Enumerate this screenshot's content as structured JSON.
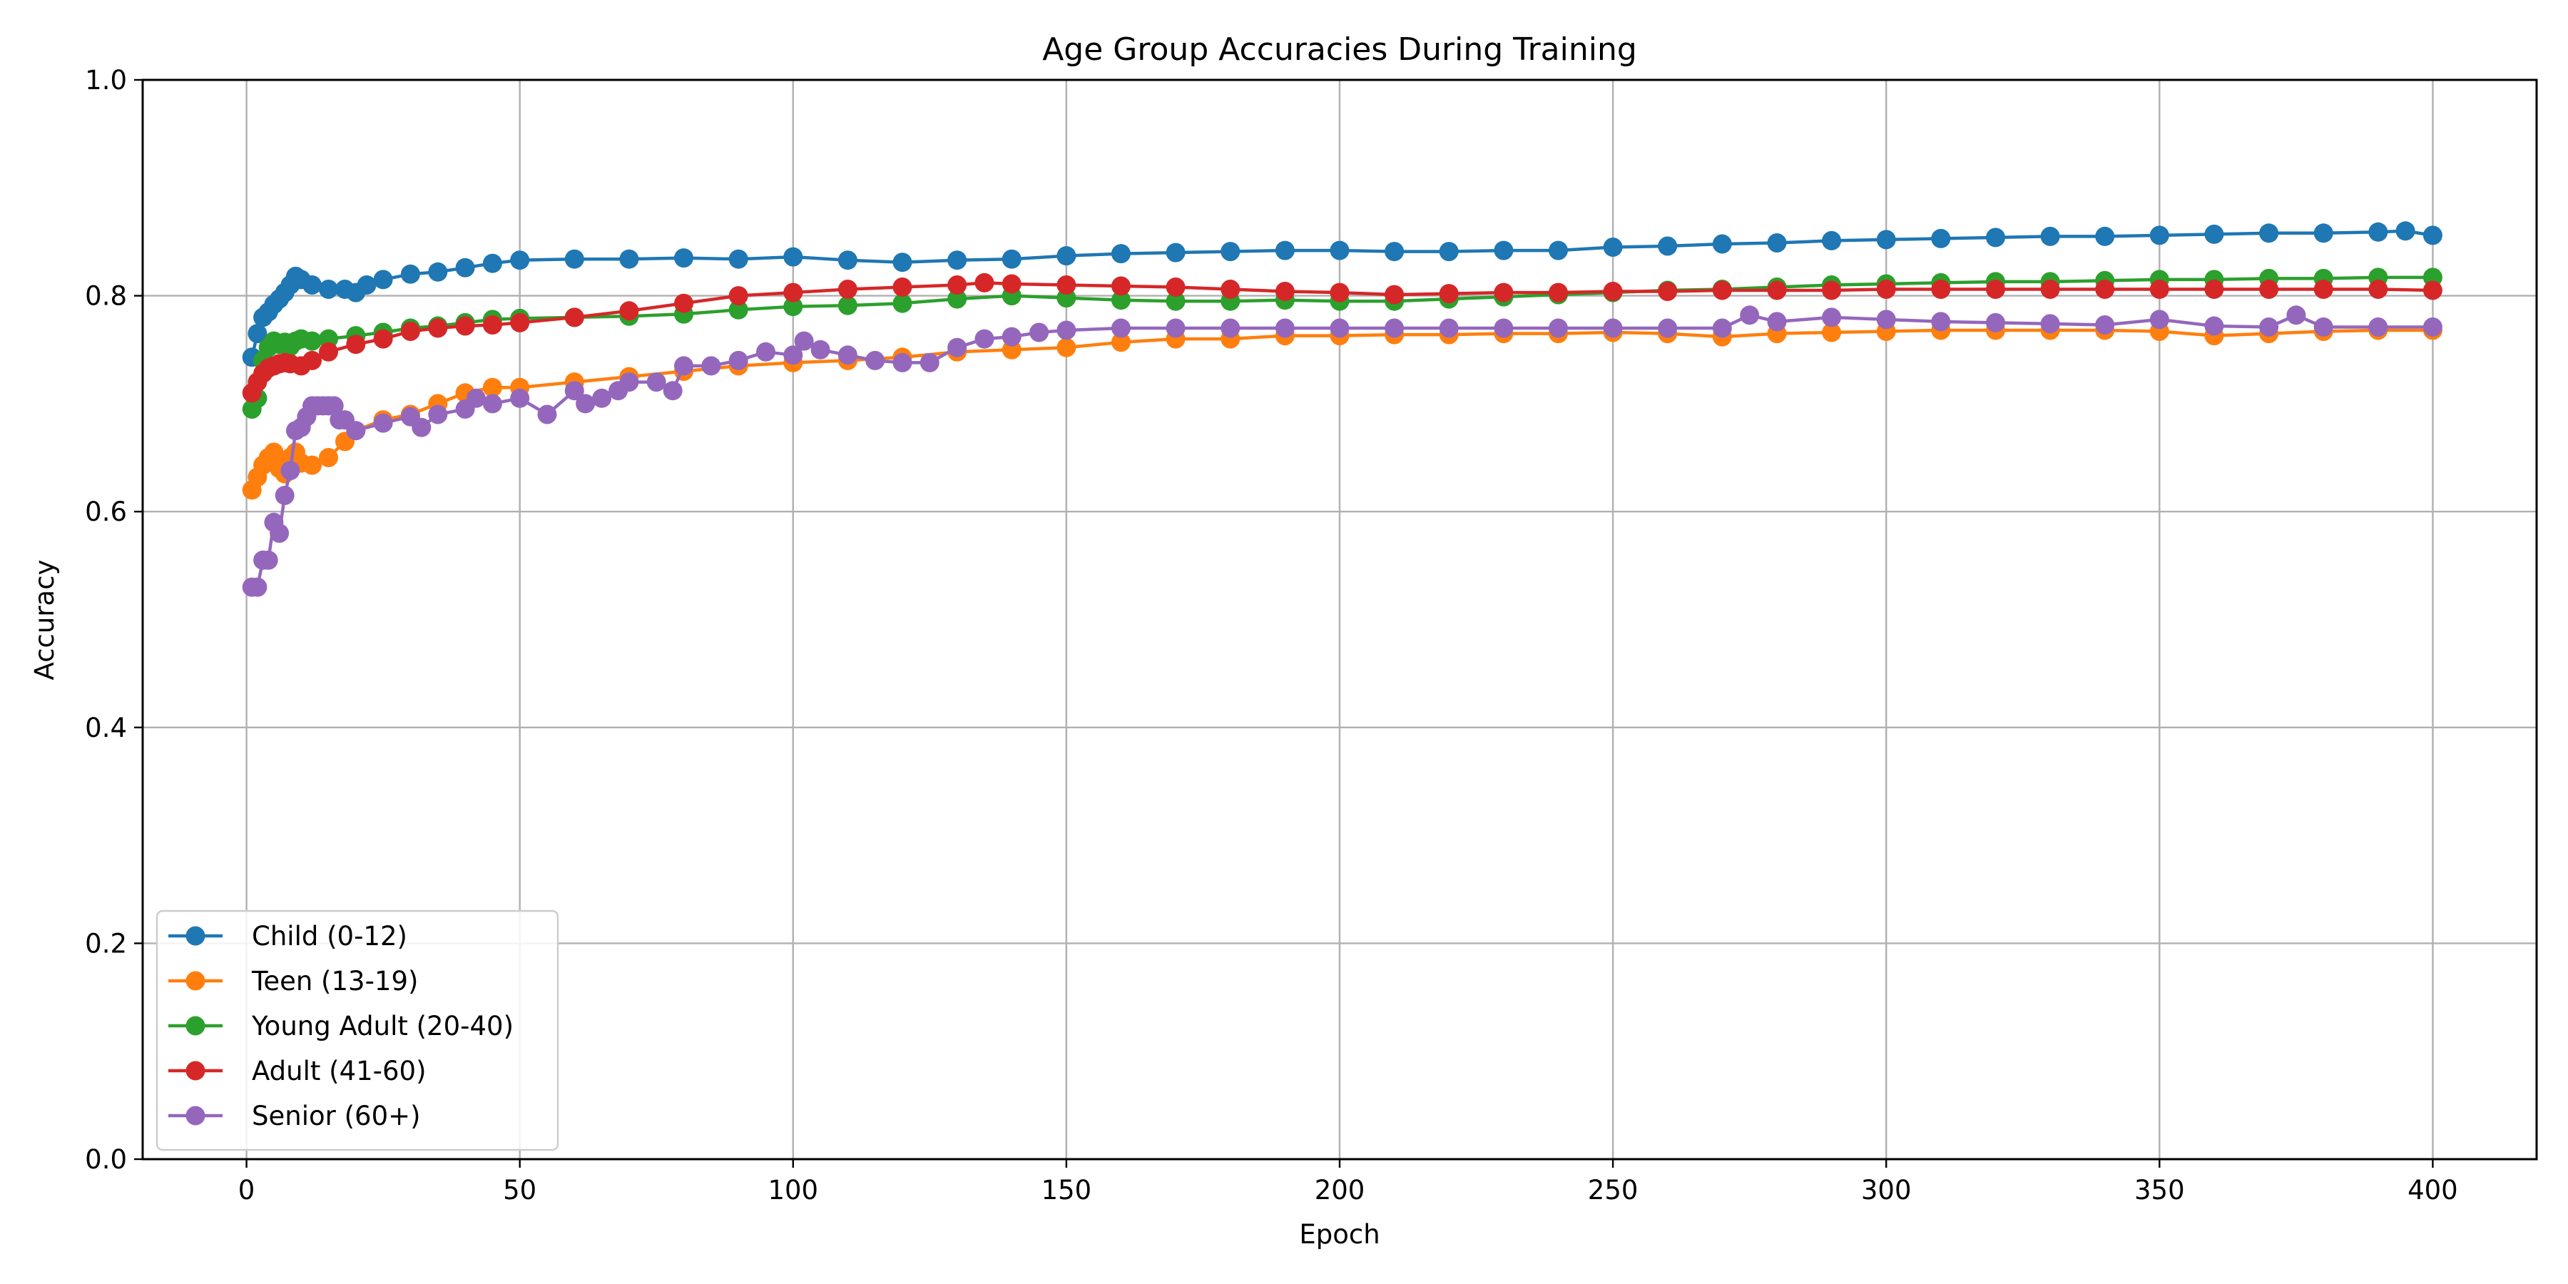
{
  "chart_data": {
    "type": "line",
    "title": "Age Group Accuracies During Training",
    "xlabel": "Epoch",
    "ylabel": "Accuracy",
    "xlim": [
      -19,
      419
    ],
    "ylim": [
      0.0,
      1.0
    ],
    "xticks": [
      0,
      50,
      100,
      150,
      200,
      250,
      300,
      350,
      400
    ],
    "yticks": [
      0.0,
      0.2,
      0.4,
      0.6,
      0.8,
      1.0
    ],
    "xtick_labels": [
      "0",
      "50",
      "100",
      "150",
      "200",
      "250",
      "300",
      "350",
      "400"
    ],
    "ytick_labels": [
      "0.0",
      "0.2",
      "0.4",
      "0.6",
      "0.8",
      "1.0"
    ],
    "grid": true,
    "legend_position": "lower-left",
    "marker": "circle",
    "series": [
      {
        "name": "Child (0-12)",
        "color": "#1f77b4",
        "points": [
          [
            1,
            0.743
          ],
          [
            2,
            0.765
          ],
          [
            3,
            0.78
          ],
          [
            4,
            0.785
          ],
          [
            5,
            0.792
          ],
          [
            6,
            0.797
          ],
          [
            7,
            0.803
          ],
          [
            8,
            0.81
          ],
          [
            9,
            0.818
          ],
          [
            10,
            0.815
          ],
          [
            12,
            0.81
          ],
          [
            15,
            0.806
          ],
          [
            18,
            0.806
          ],
          [
            20,
            0.803
          ],
          [
            22,
            0.81
          ],
          [
            25,
            0.815
          ],
          [
            30,
            0.82
          ],
          [
            35,
            0.822
          ],
          [
            40,
            0.826
          ],
          [
            45,
            0.83
          ],
          [
            50,
            0.833
          ],
          [
            60,
            0.834
          ],
          [
            70,
            0.834
          ],
          [
            80,
            0.835
          ],
          [
            90,
            0.834
          ],
          [
            100,
            0.836
          ],
          [
            110,
            0.833
          ],
          [
            120,
            0.831
          ],
          [
            130,
            0.833
          ],
          [
            140,
            0.834
          ],
          [
            150,
            0.837
          ],
          [
            160,
            0.839
          ],
          [
            170,
            0.84
          ],
          [
            180,
            0.841
          ],
          [
            190,
            0.842
          ],
          [
            200,
            0.842
          ],
          [
            210,
            0.841
          ],
          [
            220,
            0.841
          ],
          [
            230,
            0.842
          ],
          [
            240,
            0.842
          ],
          [
            250,
            0.845
          ],
          [
            260,
            0.846
          ],
          [
            270,
            0.848
          ],
          [
            280,
            0.849
          ],
          [
            290,
            0.851
          ],
          [
            300,
            0.852
          ],
          [
            310,
            0.853
          ],
          [
            320,
            0.854
          ],
          [
            330,
            0.855
          ],
          [
            340,
            0.855
          ],
          [
            350,
            0.856
          ],
          [
            360,
            0.857
          ],
          [
            370,
            0.858
          ],
          [
            380,
            0.858
          ],
          [
            390,
            0.859
          ],
          [
            395,
            0.86
          ],
          [
            400,
            0.856
          ]
        ]
      },
      {
        "name": "Teen (13-19)",
        "color": "#ff7f0e",
        "points": [
          [
            1,
            0.62
          ],
          [
            2,
            0.632
          ],
          [
            3,
            0.643
          ],
          [
            4,
            0.65
          ],
          [
            5,
            0.655
          ],
          [
            6,
            0.64
          ],
          [
            7,
            0.635
          ],
          [
            8,
            0.65
          ],
          [
            9,
            0.655
          ],
          [
            10,
            0.645
          ],
          [
            12,
            0.643
          ],
          [
            15,
            0.65
          ],
          [
            18,
            0.665
          ],
          [
            20,
            0.675
          ],
          [
            25,
            0.685
          ],
          [
            30,
            0.69
          ],
          [
            35,
            0.7
          ],
          [
            40,
            0.71
          ],
          [
            45,
            0.715
          ],
          [
            50,
            0.715
          ],
          [
            60,
            0.72
          ],
          [
            70,
            0.725
          ],
          [
            80,
            0.73
          ],
          [
            90,
            0.735
          ],
          [
            100,
            0.738
          ],
          [
            110,
            0.74
          ],
          [
            120,
            0.743
          ],
          [
            130,
            0.748
          ],
          [
            140,
            0.75
          ],
          [
            150,
            0.752
          ],
          [
            160,
            0.757
          ],
          [
            170,
            0.76
          ],
          [
            180,
            0.76
          ],
          [
            190,
            0.763
          ],
          [
            200,
            0.763
          ],
          [
            210,
            0.764
          ],
          [
            220,
            0.764
          ],
          [
            230,
            0.765
          ],
          [
            240,
            0.765
          ],
          [
            250,
            0.766
          ],
          [
            260,
            0.765
          ],
          [
            270,
            0.762
          ],
          [
            280,
            0.765
          ],
          [
            290,
            0.766
          ],
          [
            300,
            0.767
          ],
          [
            310,
            0.768
          ],
          [
            320,
            0.768
          ],
          [
            330,
            0.768
          ],
          [
            340,
            0.768
          ],
          [
            350,
            0.767
          ],
          [
            360,
            0.763
          ],
          [
            370,
            0.765
          ],
          [
            380,
            0.767
          ],
          [
            390,
            0.768
          ],
          [
            400,
            0.768
          ]
        ]
      },
      {
        "name": "Young Adult (20-40)",
        "color": "#2ca02c",
        "points": [
          [
            1,
            0.695
          ],
          [
            2,
            0.705
          ],
          [
            3,
            0.74
          ],
          [
            4,
            0.752
          ],
          [
            5,
            0.758
          ],
          [
            6,
            0.755
          ],
          [
            7,
            0.757
          ],
          [
            8,
            0.753
          ],
          [
            9,
            0.758
          ],
          [
            10,
            0.76
          ],
          [
            12,
            0.758
          ],
          [
            15,
            0.76
          ],
          [
            20,
            0.763
          ],
          [
            25,
            0.766
          ],
          [
            30,
            0.77
          ],
          [
            35,
            0.772
          ],
          [
            40,
            0.775
          ],
          [
            45,
            0.778
          ],
          [
            50,
            0.779
          ],
          [
            60,
            0.78
          ],
          [
            70,
            0.781
          ],
          [
            80,
            0.783
          ],
          [
            90,
            0.787
          ],
          [
            100,
            0.79
          ],
          [
            110,
            0.791
          ],
          [
            120,
            0.793
          ],
          [
            130,
            0.797
          ],
          [
            140,
            0.8
          ],
          [
            150,
            0.798
          ],
          [
            160,
            0.796
          ],
          [
            170,
            0.795
          ],
          [
            180,
            0.795
          ],
          [
            190,
            0.796
          ],
          [
            200,
            0.795
          ],
          [
            210,
            0.795
          ],
          [
            220,
            0.797
          ],
          [
            230,
            0.799
          ],
          [
            240,
            0.801
          ],
          [
            250,
            0.803
          ],
          [
            260,
            0.805
          ],
          [
            270,
            0.806
          ],
          [
            280,
            0.808
          ],
          [
            290,
            0.81
          ],
          [
            300,
            0.811
          ],
          [
            310,
            0.812
          ],
          [
            320,
            0.813
          ],
          [
            330,
            0.813
          ],
          [
            340,
            0.814
          ],
          [
            350,
            0.815
          ],
          [
            360,
            0.815
          ],
          [
            370,
            0.816
          ],
          [
            380,
            0.816
          ],
          [
            390,
            0.817
          ],
          [
            400,
            0.817
          ]
        ]
      },
      {
        "name": "Adult (41-60)",
        "color": "#d62728",
        "points": [
          [
            1,
            0.71
          ],
          [
            2,
            0.72
          ],
          [
            3,
            0.728
          ],
          [
            4,
            0.733
          ],
          [
            5,
            0.735
          ],
          [
            6,
            0.737
          ],
          [
            7,
            0.738
          ],
          [
            8,
            0.737
          ],
          [
            10,
            0.735
          ],
          [
            12,
            0.74
          ],
          [
            15,
            0.748
          ],
          [
            20,
            0.755
          ],
          [
            25,
            0.76
          ],
          [
            30,
            0.767
          ],
          [
            35,
            0.77
          ],
          [
            40,
            0.772
          ],
          [
            45,
            0.773
          ],
          [
            50,
            0.775
          ],
          [
            60,
            0.78
          ],
          [
            70,
            0.786
          ],
          [
            80,
            0.793
          ],
          [
            90,
            0.8
          ],
          [
            100,
            0.803
          ],
          [
            110,
            0.806
          ],
          [
            120,
            0.808
          ],
          [
            130,
            0.81
          ],
          [
            135,
            0.812
          ],
          [
            140,
            0.811
          ],
          [
            150,
            0.81
          ],
          [
            160,
            0.809
          ],
          [
            170,
            0.808
          ],
          [
            180,
            0.806
          ],
          [
            190,
            0.804
          ],
          [
            200,
            0.803
          ],
          [
            210,
            0.801
          ],
          [
            220,
            0.802
          ],
          [
            230,
            0.803
          ],
          [
            240,
            0.803
          ],
          [
            250,
            0.804
          ],
          [
            260,
            0.804
          ],
          [
            270,
            0.805
          ],
          [
            280,
            0.805
          ],
          [
            290,
            0.805
          ],
          [
            300,
            0.806
          ],
          [
            310,
            0.806
          ],
          [
            320,
            0.806
          ],
          [
            330,
            0.806
          ],
          [
            340,
            0.806
          ],
          [
            350,
            0.806
          ],
          [
            360,
            0.806
          ],
          [
            370,
            0.806
          ],
          [
            380,
            0.806
          ],
          [
            390,
            0.806
          ],
          [
            400,
            0.805
          ]
        ]
      },
      {
        "name": "Senior (60+)",
        "color": "#9467bd",
        "points": [
          [
            1,
            0.53
          ],
          [
            2,
            0.53
          ],
          [
            3,
            0.555
          ],
          [
            4,
            0.555
          ],
          [
            5,
            0.59
          ],
          [
            6,
            0.58
          ],
          [
            7,
            0.615
          ],
          [
            8,
            0.638
          ],
          [
            9,
            0.675
          ],
          [
            10,
            0.678
          ],
          [
            11,
            0.688
          ],
          [
            12,
            0.698
          ],
          [
            13,
            0.698
          ],
          [
            14,
            0.698
          ],
          [
            15,
            0.698
          ],
          [
            16,
            0.698
          ],
          [
            17,
            0.685
          ],
          [
            18,
            0.685
          ],
          [
            20,
            0.675
          ],
          [
            25,
            0.682
          ],
          [
            30,
            0.688
          ],
          [
            32,
            0.678
          ],
          [
            35,
            0.69
          ],
          [
            40,
            0.695
          ],
          [
            42,
            0.705
          ],
          [
            45,
            0.7
          ],
          [
            50,
            0.705
          ],
          [
            55,
            0.69
          ],
          [
            60,
            0.712
          ],
          [
            62,
            0.7
          ],
          [
            65,
            0.705
          ],
          [
            68,
            0.712
          ],
          [
            70,
            0.72
          ],
          [
            75,
            0.72
          ],
          [
            78,
            0.712
          ],
          [
            80,
            0.735
          ],
          [
            85,
            0.735
          ],
          [
            90,
            0.74
          ],
          [
            95,
            0.748
          ],
          [
            100,
            0.745
          ],
          [
            102,
            0.758
          ],
          [
            105,
            0.75
          ],
          [
            110,
            0.745
          ],
          [
            115,
            0.74
          ],
          [
            120,
            0.738
          ],
          [
            125,
            0.738
          ],
          [
            130,
            0.752
          ],
          [
            135,
            0.76
          ],
          [
            140,
            0.762
          ],
          [
            145,
            0.766
          ],
          [
            150,
            0.768
          ],
          [
            160,
            0.77
          ],
          [
            170,
            0.77
          ],
          [
            180,
            0.77
          ],
          [
            190,
            0.77
          ],
          [
            200,
            0.77
          ],
          [
            210,
            0.77
          ],
          [
            220,
            0.77
          ],
          [
            230,
            0.77
          ],
          [
            240,
            0.77
          ],
          [
            250,
            0.77
          ],
          [
            260,
            0.77
          ],
          [
            270,
            0.77
          ],
          [
            275,
            0.782
          ],
          [
            280,
            0.776
          ],
          [
            290,
            0.78
          ],
          [
            300,
            0.778
          ],
          [
            310,
            0.776
          ],
          [
            320,
            0.775
          ],
          [
            330,
            0.774
          ],
          [
            340,
            0.773
          ],
          [
            350,
            0.778
          ],
          [
            360,
            0.772
          ],
          [
            370,
            0.771
          ],
          [
            375,
            0.782
          ],
          [
            380,
            0.771
          ],
          [
            390,
            0.771
          ],
          [
            400,
            0.771
          ]
        ]
      }
    ]
  }
}
